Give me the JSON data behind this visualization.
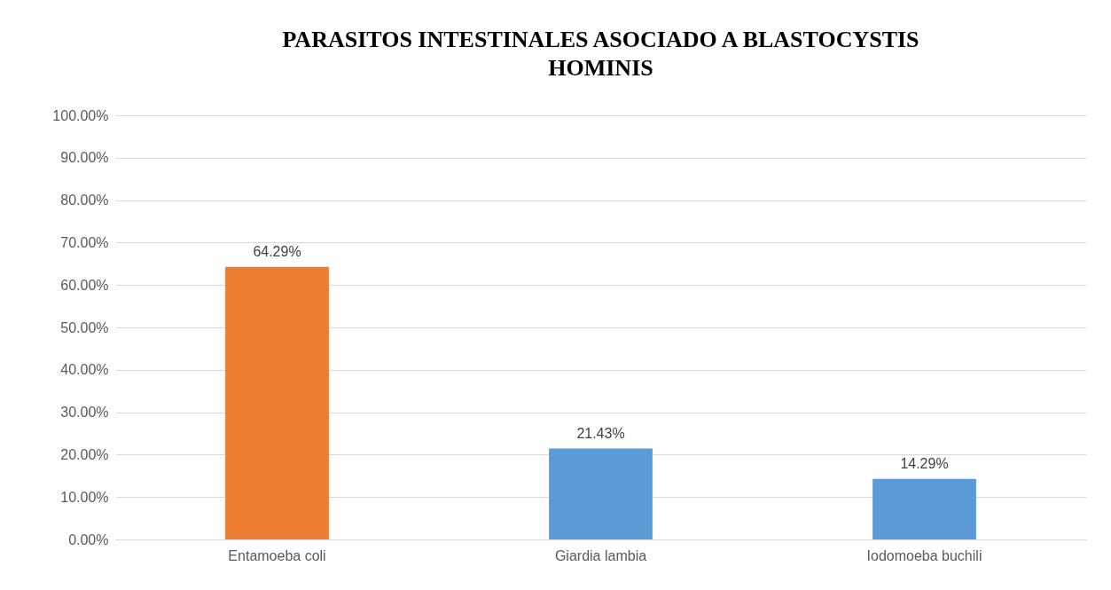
{
  "chart_data": {
    "type": "bar",
    "title": "PARASITOS INTESTINALES ASOCIADO A BLASTOCYSTIS HOMINIS",
    "categories": [
      "Entamoeba coli",
      "Giardia lambia",
      "Iodomoeba buchili"
    ],
    "values": [
      64.29,
      21.43,
      14.29
    ],
    "colors": [
      "#ed7d31",
      "#5b9bd5",
      "#5b9bd5"
    ],
    "value_labels": [
      "64.29%",
      "21.43%",
      "14.29%"
    ],
    "ylim": [
      0,
      100
    ],
    "yticks": [
      {
        "value": 0,
        "label": "0.00%"
      },
      {
        "value": 10,
        "label": "10.00%"
      },
      {
        "value": 20,
        "label": "20.00%"
      },
      {
        "value": 30,
        "label": "30.00%"
      },
      {
        "value": 40,
        "label": "40.00%"
      },
      {
        "value": 50,
        "label": "50.00%"
      },
      {
        "value": 60,
        "label": "60.00%"
      },
      {
        "value": 70,
        "label": "70.00%"
      },
      {
        "value": 80,
        "label": "80.00%"
      },
      {
        "value": 90,
        "label": "90.00%"
      },
      {
        "value": 100,
        "label": "100.00%"
      }
    ],
    "grid": "y"
  }
}
